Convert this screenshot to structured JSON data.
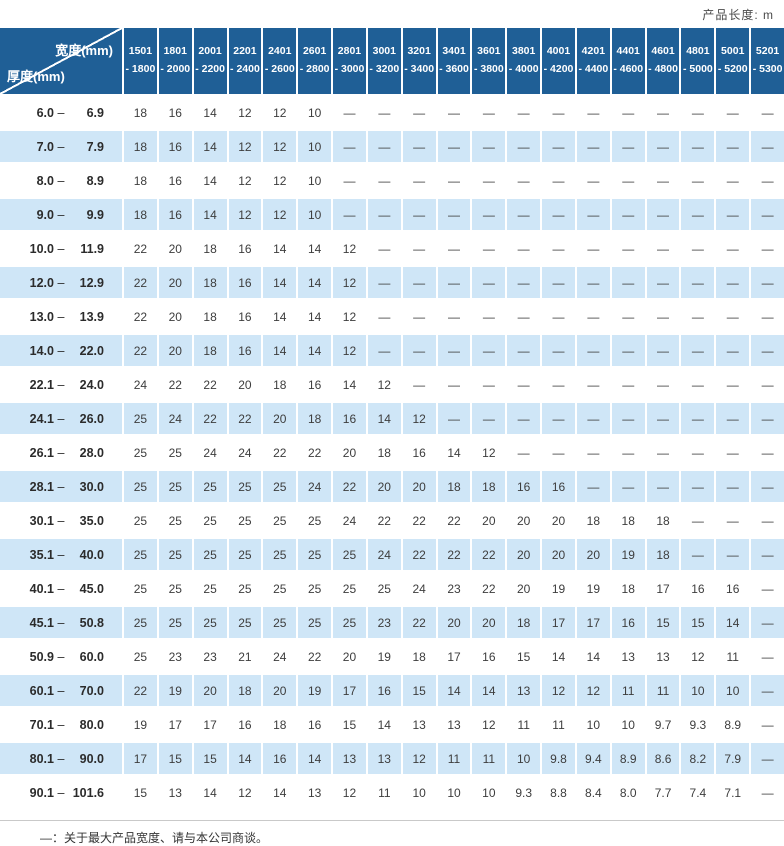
{
  "page": {
    "unit_label": "产品长度:  m",
    "footnote": "—：关于最大产品宽度、请与本公司商谈。"
  },
  "colors": {
    "header_bg": "#1F5F96",
    "row_highlight": "#CFE6F7",
    "text": "#3D3D3D",
    "footnote_border": "#C9C9C9"
  },
  "table": {
    "corner": {
      "top": "宽度(mm)",
      "bottom": "厚度(mm)"
    },
    "width_columns": [
      {
        "line1": "1501",
        "line2": "- 1800"
      },
      {
        "line1": "1801",
        "line2": "- 2000"
      },
      {
        "line1": "2001",
        "line2": "- 2200"
      },
      {
        "line1": "2201",
        "line2": "- 2400"
      },
      {
        "line1": "2401",
        "line2": "- 2600"
      },
      {
        "line1": "2601",
        "line2": "- 2800"
      },
      {
        "line1": "2801",
        "line2": "- 3000"
      },
      {
        "line1": "3001",
        "line2": "- 3200"
      },
      {
        "line1": "3201",
        "line2": "- 3400"
      },
      {
        "line1": "3401",
        "line2": "- 3600"
      },
      {
        "line1": "3601",
        "line2": "- 3800"
      },
      {
        "line1": "3801",
        "line2": "- 4000"
      },
      {
        "line1": "4001",
        "line2": "- 4200"
      },
      {
        "line1": "4201",
        "line2": "- 4400"
      },
      {
        "line1": "4401",
        "line2": "- 4600"
      },
      {
        "line1": "4601",
        "line2": "- 4800"
      },
      {
        "line1": "4801",
        "line2": "- 5000"
      },
      {
        "line1": "5001",
        "line2": "- 5200"
      },
      {
        "line1": "5201",
        "line2": "- 5300"
      }
    ],
    "rows": [
      {
        "low": "6.0",
        "high": "6.9",
        "values": [
          "18",
          "16",
          "14",
          "12",
          "12",
          "10",
          "—",
          "—",
          "—",
          "—",
          "—",
          "—",
          "—",
          "—",
          "—",
          "—",
          "—",
          "—",
          "—"
        ]
      },
      {
        "low": "7.0",
        "high": "7.9",
        "values": [
          "18",
          "16",
          "14",
          "12",
          "12",
          "10",
          "—",
          "—",
          "—",
          "—",
          "—",
          "—",
          "—",
          "—",
          "—",
          "—",
          "—",
          "—",
          "—"
        ]
      },
      {
        "low": "8.0",
        "high": "8.9",
        "values": [
          "18",
          "16",
          "14",
          "12",
          "12",
          "10",
          "—",
          "—",
          "—",
          "—",
          "—",
          "—",
          "—",
          "—",
          "—",
          "—",
          "—",
          "—",
          "—"
        ]
      },
      {
        "low": "9.0",
        "high": "9.9",
        "values": [
          "18",
          "16",
          "14",
          "12",
          "12",
          "10",
          "—",
          "—",
          "—",
          "—",
          "—",
          "—",
          "—",
          "—",
          "—",
          "—",
          "—",
          "—",
          "—"
        ]
      },
      {
        "low": "10.0",
        "high": "11.9",
        "values": [
          "22",
          "20",
          "18",
          "16",
          "14",
          "14",
          "12",
          "—",
          "—",
          "—",
          "—",
          "—",
          "—",
          "—",
          "—",
          "—",
          "—",
          "—",
          "—"
        ]
      },
      {
        "low": "12.0",
        "high": "12.9",
        "values": [
          "22",
          "20",
          "18",
          "16",
          "14",
          "14",
          "12",
          "—",
          "—",
          "—",
          "—",
          "—",
          "—",
          "—",
          "—",
          "—",
          "—",
          "—",
          "—"
        ]
      },
      {
        "low": "13.0",
        "high": "13.9",
        "values": [
          "22",
          "20",
          "18",
          "16",
          "14",
          "14",
          "12",
          "—",
          "—",
          "—",
          "—",
          "—",
          "—",
          "—",
          "—",
          "—",
          "—",
          "—",
          "—"
        ]
      },
      {
        "low": "14.0",
        "high": "22.0",
        "values": [
          "22",
          "20",
          "18",
          "16",
          "14",
          "14",
          "12",
          "—",
          "—",
          "—",
          "—",
          "—",
          "—",
          "—",
          "—",
          "—",
          "—",
          "—",
          "—"
        ]
      },
      {
        "low": "22.1",
        "high": "24.0",
        "values": [
          "24",
          "22",
          "22",
          "20",
          "18",
          "16",
          "14",
          "12",
          "—",
          "—",
          "—",
          "—",
          "—",
          "—",
          "—",
          "—",
          "—",
          "—",
          "—"
        ]
      },
      {
        "low": "24.1",
        "high": "26.0",
        "values": [
          "25",
          "24",
          "22",
          "22",
          "20",
          "18",
          "16",
          "14",
          "12",
          "—",
          "—",
          "—",
          "—",
          "—",
          "—",
          "—",
          "—",
          "—",
          "—"
        ]
      },
      {
        "low": "26.1",
        "high": "28.0",
        "values": [
          "25",
          "25",
          "24",
          "24",
          "22",
          "22",
          "20",
          "18",
          "16",
          "14",
          "12",
          "—",
          "—",
          "—",
          "—",
          "—",
          "—",
          "—",
          "—"
        ]
      },
      {
        "low": "28.1",
        "high": "30.0",
        "values": [
          "25",
          "25",
          "25",
          "25",
          "25",
          "24",
          "22",
          "20",
          "20",
          "18",
          "18",
          "16",
          "16",
          "—",
          "—",
          "—",
          "—",
          "—",
          "—"
        ]
      },
      {
        "low": "30.1",
        "high": "35.0",
        "values": [
          "25",
          "25",
          "25",
          "25",
          "25",
          "25",
          "24",
          "22",
          "22",
          "22",
          "20",
          "20",
          "20",
          "18",
          "18",
          "18",
          "—",
          "—",
          "—"
        ]
      },
      {
        "low": "35.1",
        "high": "40.0",
        "values": [
          "25",
          "25",
          "25",
          "25",
          "25",
          "25",
          "25",
          "24",
          "22",
          "22",
          "22",
          "20",
          "20",
          "20",
          "19",
          "18",
          "—",
          "—",
          "—"
        ]
      },
      {
        "low": "40.1",
        "high": "45.0",
        "values": [
          "25",
          "25",
          "25",
          "25",
          "25",
          "25",
          "25",
          "25",
          "24",
          "23",
          "22",
          "20",
          "19",
          "19",
          "18",
          "17",
          "16",
          "16",
          "—"
        ]
      },
      {
        "low": "45.1",
        "high": "50.8",
        "values": [
          "25",
          "25",
          "25",
          "25",
          "25",
          "25",
          "25",
          "23",
          "22",
          "20",
          "20",
          "18",
          "17",
          "17",
          "16",
          "15",
          "15",
          "14",
          "—"
        ]
      },
      {
        "low": "50.9",
        "high": "60.0",
        "values": [
          "25",
          "23",
          "23",
          "21",
          "24",
          "22",
          "20",
          "19",
          "18",
          "17",
          "16",
          "15",
          "14",
          "14",
          "13",
          "13",
          "12",
          "11",
          "—"
        ]
      },
      {
        "low": "60.1",
        "high": "70.0",
        "values": [
          "22",
          "19",
          "20",
          "18",
          "20",
          "19",
          "17",
          "16",
          "15",
          "14",
          "14",
          "13",
          "12",
          "12",
          "11",
          "11",
          "10",
          "10",
          "—"
        ]
      },
      {
        "low": "70.1",
        "high": "80.0",
        "values": [
          "19",
          "17",
          "17",
          "16",
          "18",
          "16",
          "15",
          "14",
          "13",
          "13",
          "12",
          "11",
          "11",
          "10",
          "10",
          "9.7",
          "9.3",
          "8.9",
          "—"
        ]
      },
      {
        "low": "80.1",
        "high": "90.0",
        "values": [
          "17",
          "15",
          "15",
          "14",
          "16",
          "14",
          "13",
          "13",
          "12",
          "11",
          "11",
          "10",
          "9.8",
          "9.4",
          "8.9",
          "8.6",
          "8.2",
          "7.9",
          "—"
        ]
      },
      {
        "low": "90.1",
        "high": "101.6",
        "values": [
          "15",
          "13",
          "14",
          "12",
          "14",
          "13",
          "12",
          "11",
          "10",
          "10",
          "10",
          "9.3",
          "8.8",
          "8.4",
          "8.0",
          "7.7",
          "7.4",
          "7.1",
          "—"
        ]
      }
    ]
  }
}
